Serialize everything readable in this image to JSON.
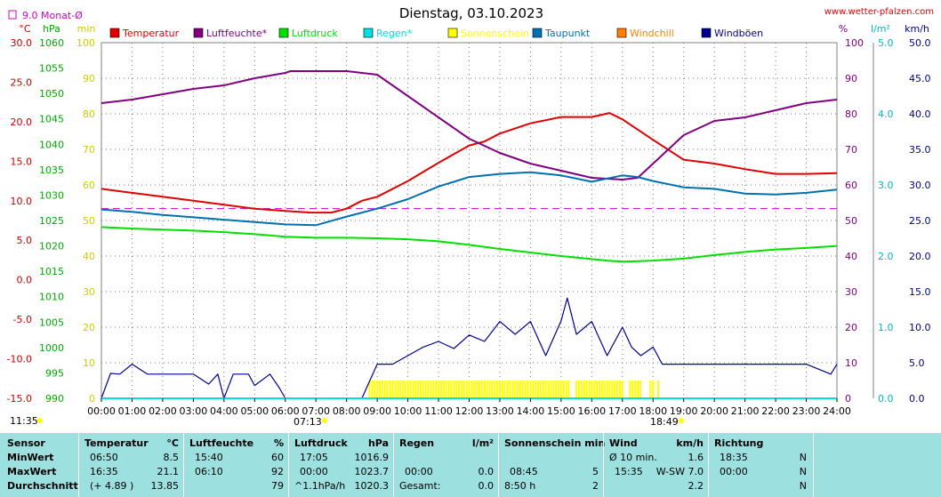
{
  "title": "Dienstag, 03.10.2023",
  "site": "www.wetter-pfalzen.com",
  "monthly_avg_label": "9.0 Monat-Ø",
  "left_units": [
    "°C",
    "hPa",
    "min"
  ],
  "right_units": [
    "%",
    "l/m²",
    "km/h"
  ],
  "legend": [
    {
      "label": "Temperatur",
      "color": "#e00000"
    },
    {
      "label": "Luftfeuchte*",
      "color": "#800080"
    },
    {
      "label": "Luftdruck",
      "color": "#00e000"
    },
    {
      "label": "Regen*",
      "color": "#00e0e0"
    },
    {
      "label": "Sonnenschein",
      "color": "#ffff00"
    },
    {
      "label": "Taupunkt",
      "color": "#0070b0"
    },
    {
      "label": "Windchill",
      "color": "#ff8000"
    },
    {
      "label": "Windböen",
      "color": "#000090"
    }
  ],
  "sunrise": "07:13",
  "sunset": "18:49",
  "current_time": "11:35",
  "chart_data": {
    "type": "line",
    "xlabel": "",
    "x_ticks": [
      "00:00",
      "01:00",
      "02:00",
      "03:00",
      "04:00",
      "05:00",
      "06:00",
      "07:00",
      "08:00",
      "09:00",
      "10:00",
      "11:00",
      "12:00",
      "13:00",
      "14:00",
      "15:00",
      "16:00",
      "17:00",
      "18:00",
      "19:00",
      "20:00",
      "21:00",
      "22:00",
      "23:00",
      "24:00"
    ],
    "axes": {
      "temp_c": {
        "ticks": [
          "30.0",
          "25.0",
          "20.0",
          "15.0",
          "10.0",
          "5.0",
          "0.0",
          "-5.0",
          "-10.0",
          "-15.0"
        ],
        "range": [
          -15,
          30
        ]
      },
      "pressure_hpa": {
        "ticks": [
          "1060",
          "1055",
          "1050",
          "1045",
          "1040",
          "1035",
          "1030",
          "1025",
          "1020",
          "1015",
          "1010",
          "1005",
          "1000",
          "995",
          "990"
        ],
        "range": [
          990,
          1060
        ]
      },
      "sun_min": {
        "ticks": [
          "100",
          "90",
          "80",
          "70",
          "60",
          "50",
          "40",
          "30",
          "20",
          "10",
          "0"
        ],
        "range": [
          0,
          100
        ]
      },
      "humidity_pct": {
        "ticks": [
          "100",
          "90",
          "80",
          "70",
          "60",
          "50",
          "40",
          "30",
          "20",
          "10",
          "0"
        ],
        "range": [
          0,
          100
        ]
      },
      "rain_lm2": {
        "ticks": [
          "5.0",
          "4.0",
          "3.0",
          "2.0",
          "1.0",
          "0.0"
        ],
        "range": [
          0,
          5
        ]
      },
      "wind_kmh": {
        "ticks": [
          "50.0",
          "45.0",
          "40.0",
          "35.0",
          "30.0",
          "25.0",
          "20.0",
          "15.0",
          "10.0",
          "5.0",
          "0.0"
        ],
        "range": [
          0,
          50
        ]
      }
    },
    "monthly_avg_temp": 9.0,
    "series": [
      {
        "name": "Temperatur",
        "axis": "temp_c",
        "color": "#e00000",
        "x": [
          0,
          1,
          2,
          3,
          4,
          5,
          6,
          6.83,
          7.5,
          8,
          8.5,
          9,
          10,
          11,
          12,
          12.5,
          13,
          14,
          15,
          16,
          16.58,
          17,
          18,
          19,
          20,
          21,
          22,
          23,
          24
        ],
        "y": [
          11.5,
          11.0,
          10.5,
          10.0,
          9.5,
          9.0,
          8.7,
          8.5,
          8.5,
          9.0,
          10.0,
          10.5,
          12.5,
          14.8,
          17.0,
          17.5,
          18.5,
          19.8,
          20.6,
          20.6,
          21.1,
          20.3,
          17.7,
          15.2,
          14.7,
          14.0,
          13.4,
          13.4,
          13.5
        ]
      },
      {
        "name": "Luftfeuchte*",
        "axis": "humidity_pct",
        "color": "#800080",
        "x": [
          0,
          1,
          2,
          3,
          4,
          5,
          6,
          6.17,
          7,
          8,
          9,
          10,
          11,
          12,
          13,
          14,
          15,
          16,
          17,
          17.5,
          18,
          19,
          20,
          21,
          22,
          23,
          24
        ],
        "y": [
          83,
          84,
          85.5,
          87,
          88,
          90,
          91.5,
          92,
          92,
          92,
          91,
          85,
          79,
          73,
          69,
          66,
          64,
          62,
          61.5,
          62,
          66,
          74,
          78,
          79,
          81,
          83,
          84
        ]
      },
      {
        "name": "Luftdruck",
        "axis": "pressure_hpa",
        "color": "#00e000",
        "x": [
          0,
          1,
          2,
          3,
          4,
          5,
          6,
          7,
          8,
          9,
          10,
          11,
          12,
          13,
          14,
          15,
          16,
          16.5,
          17,
          17.08,
          18,
          19,
          20,
          21,
          22,
          23,
          24
        ],
        "y": [
          1023.7,
          1023.4,
          1023.2,
          1023.0,
          1022.7,
          1022.3,
          1021.8,
          1021.6,
          1021.6,
          1021.5,
          1021.3,
          1020.9,
          1020.2,
          1019.4,
          1018.7,
          1018.0,
          1017.4,
          1017.1,
          1016.9,
          1016.9,
          1017.1,
          1017.5,
          1018.2,
          1018.8,
          1019.3,
          1019.6,
          1020.0
        ]
      },
      {
        "name": "Taupunkt",
        "axis": "temp_c",
        "color": "#0070b0",
        "x": [
          0,
          1,
          2,
          3,
          4,
          5,
          6,
          7,
          8,
          9,
          10,
          11,
          12,
          13,
          14,
          15,
          16,
          17,
          17.5,
          18,
          19,
          20,
          21,
          22,
          23,
          24
        ],
        "y": [
          8.9,
          8.6,
          8.2,
          7.9,
          7.6,
          7.3,
          7.0,
          6.9,
          8.0,
          9.0,
          10.2,
          11.8,
          13.0,
          13.4,
          13.6,
          13.2,
          12.4,
          13.2,
          13.0,
          12.5,
          11.7,
          11.5,
          10.9,
          10.8,
          11.0,
          11.4
        ]
      },
      {
        "name": "Windböen",
        "axis": "wind_kmh",
        "color": "#000090",
        "x": [
          0,
          0.3,
          0.6,
          1,
          1.5,
          2,
          3,
          3.5,
          3.8,
          4,
          4.3,
          4.8,
          5,
          5.5,
          5.8,
          6,
          6.3,
          8.5,
          9,
          9.5,
          10,
          10.5,
          11,
          11.5,
          12,
          12.5,
          13,
          13.5,
          14,
          14.5,
          15,
          15.2,
          15.5,
          16,
          16.5,
          17,
          17.3,
          17.6,
          18,
          18.3,
          19,
          20,
          21,
          22,
          23,
          23.8,
          24
        ],
        "y": [
          0,
          3.5,
          3.4,
          4.8,
          3.4,
          3.4,
          3.4,
          2.0,
          3.4,
          0,
          3.4,
          3.4,
          1.8,
          3.4,
          1.5,
          0,
          0,
          0,
          4.8,
          4.8,
          6.0,
          7.2,
          8.0,
          7.0,
          8.9,
          8.0,
          10.8,
          9.0,
          10.8,
          6.0,
          10.9,
          14.1,
          9.0,
          10.8,
          6.0,
          10.0,
          7.2,
          6.0,
          7.2,
          4.8,
          4.8,
          4.8,
          4.8,
          4.8,
          4.8,
          3.4,
          4.8
        ]
      },
      {
        "name": "Regen*",
        "axis": "rain_lm2",
        "color": "#00e0e0",
        "x": [
          0,
          24
        ],
        "y": [
          0,
          0
        ]
      }
    ],
    "sunshine": {
      "start_hour": 8.75,
      "end_hour": 18.2,
      "bar_value": 5,
      "gaps": [
        [
          15.3,
          15.45
        ],
        [
          17.05,
          17.25
        ],
        [
          17.65,
          17.85
        ],
        [
          18.02,
          18.1
        ]
      ]
    }
  },
  "stats": {
    "sensor": {
      "title": "Sensor",
      "rows": [
        "MinWert",
        "MaxWert",
        "Durchschnitt"
      ]
    },
    "temperatur": {
      "title": "Temperatur",
      "unit": "°C",
      "rows": [
        [
          "06:50",
          "8.5"
        ],
        [
          "16:35",
          "21.1"
        ],
        [
          "(+ 4.89 )",
          "13.85"
        ]
      ]
    },
    "luftfeuchte": {
      "title": "Luftfeuchte",
      "unit": "%",
      "rows": [
        [
          "15:40",
          "60"
        ],
        [
          "06:10",
          "92"
        ],
        [
          "",
          "79"
        ]
      ]
    },
    "luftdruck": {
      "title": "Luftdruck",
      "unit": "hPa",
      "rows": [
        [
          "17:05",
          "1016.9"
        ],
        [
          "00:00",
          "1023.7"
        ],
        [
          "^1.1hPa/h",
          "1020.3"
        ]
      ]
    },
    "regen": {
      "title": "Regen",
      "unit": "l/m²",
      "rows": [
        [
          "",
          ""
        ],
        [
          "00:00",
          "0.0"
        ],
        [
          "Gesamt:",
          "0.0"
        ]
      ]
    },
    "sonnenschein": {
      "title": "Sonnenschein min",
      "unit": "",
      "rows": [
        [
          "",
          ""
        ],
        [
          "08:45",
          "5"
        ],
        [
          "8:50 h",
          "2"
        ]
      ]
    },
    "wind": {
      "title": "Wind",
      "unit": "km/h",
      "rows": [
        [
          "Ø 10 min.",
          "1.6"
        ],
        [
          "15:35",
          "W-SW 7.0"
        ],
        [
          "",
          "2.2"
        ]
      ]
    },
    "richtung": {
      "title": "Richtung",
      "rows": [
        [
          "18:35",
          "N"
        ],
        [
          "00:00",
          "N"
        ],
        [
          "",
          "N"
        ]
      ]
    }
  }
}
